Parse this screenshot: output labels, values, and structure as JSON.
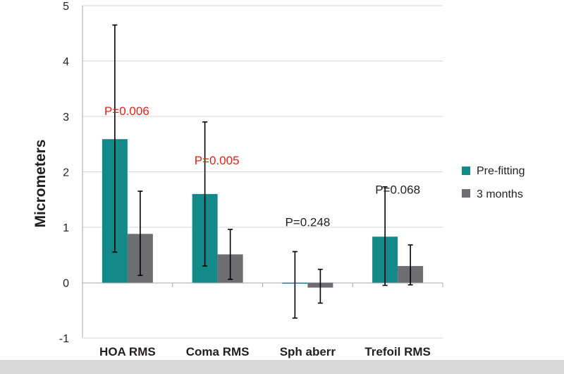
{
  "chart_data": {
    "type": "bar",
    "ylabel": "Micrometers",
    "ylim": [
      -1,
      5
    ],
    "yticks": [
      "-1",
      "0",
      "1",
      "2",
      "3",
      "4",
      "5"
    ],
    "categories": [
      "HOA RMS",
      "Coma RMS",
      "Sph aberr",
      "Trefoil RMS"
    ],
    "series": [
      {
        "name": "Pre-fitting",
        "color": "#138a8a",
        "values": [
          2.59,
          1.6,
          -0.01,
          0.83
        ],
        "error_low": [
          0.55,
          0.3,
          -0.64,
          -0.05
        ],
        "error_high": [
          4.65,
          2.9,
          0.56,
          1.73
        ]
      },
      {
        "name": "3 months",
        "color": "#6d6e71",
        "values": [
          0.88,
          0.51,
          -0.09,
          0.3
        ],
        "error_low": [
          0.13,
          0.06,
          -0.37,
          -0.04
        ],
        "error_high": [
          1.65,
          0.96,
          0.24,
          0.68
        ]
      }
    ],
    "annotations": [
      {
        "text": "P=0.006",
        "color": "#e0211b"
      },
      {
        "text": "P=0.005",
        "color": "#e0211b"
      },
      {
        "text": "P=0.248",
        "color": "#231f20"
      },
      {
        "text": "P=0.068",
        "color": "#231f20"
      }
    ],
    "grid": true,
    "legend_position": "right"
  }
}
